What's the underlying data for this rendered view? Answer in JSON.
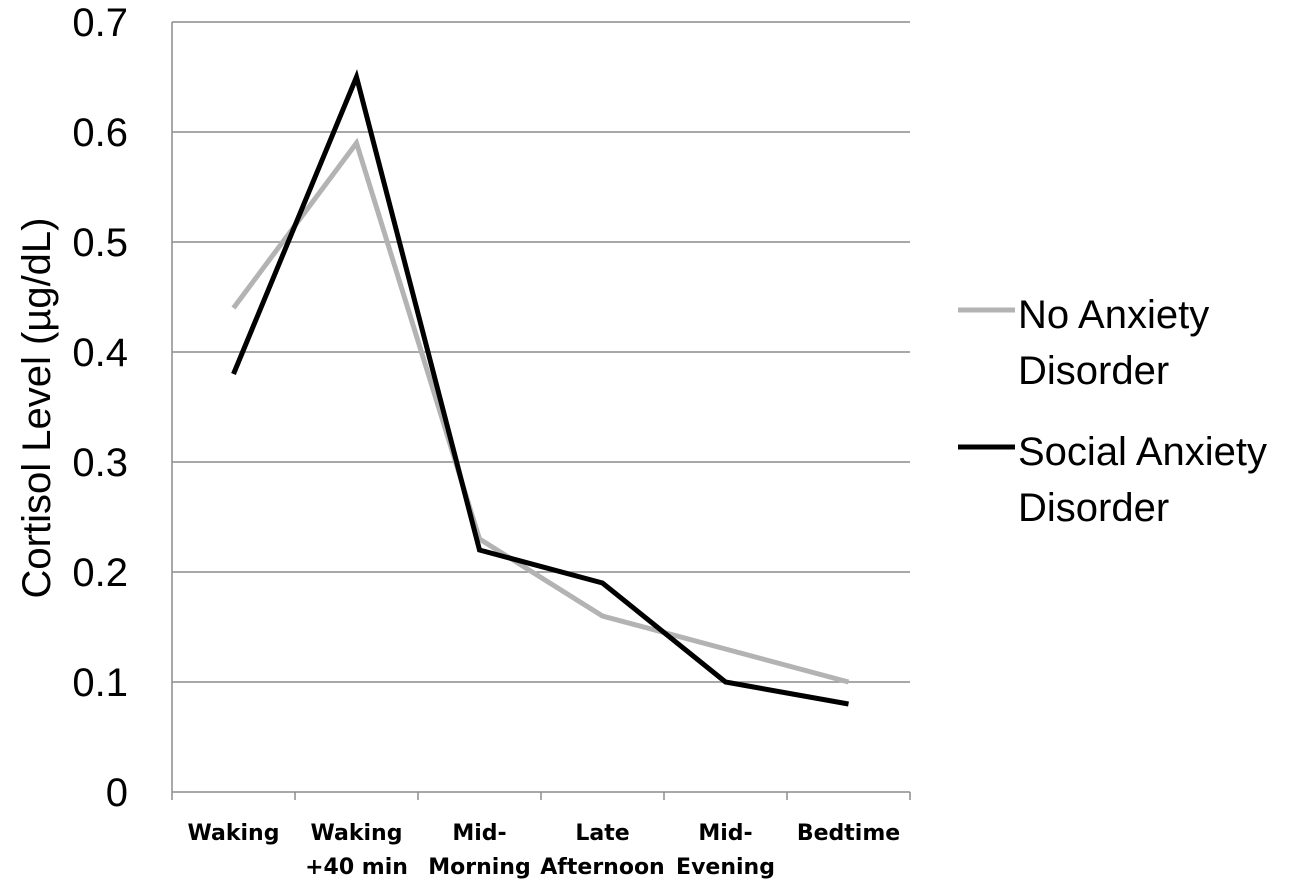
{
  "chart_data": {
    "type": "line",
    "title": "",
    "xlabel": "",
    "ylabel": "Cortisol Level (µg/dL)",
    "ylim": [
      0,
      0.7
    ],
    "yticks": [
      "0",
      "0.1",
      "0.2",
      "0.3",
      "0.4",
      "0.5",
      "0.6",
      "0.7"
    ],
    "categories": [
      [
        "Waking"
      ],
      [
        "Waking",
        "+40 min"
      ],
      [
        "Mid-",
        "Morning"
      ],
      [
        "Late",
        "Afternoon"
      ],
      [
        "Mid-",
        "Evening"
      ],
      [
        "Bedtime"
      ]
    ],
    "grid": true,
    "legend_position": "right",
    "series": [
      {
        "name_lines": [
          "No Anxiety",
          "Disorder"
        ],
        "color": "#b3b3b3",
        "values": [
          0.44,
          0.59,
          0.23,
          0.16,
          0.13,
          0.1
        ]
      },
      {
        "name_lines": [
          "Social Anxiety",
          "Disorder"
        ],
        "color": "#000000",
        "values": [
          0.38,
          0.65,
          0.22,
          0.19,
          0.1,
          0.08
        ]
      }
    ]
  }
}
